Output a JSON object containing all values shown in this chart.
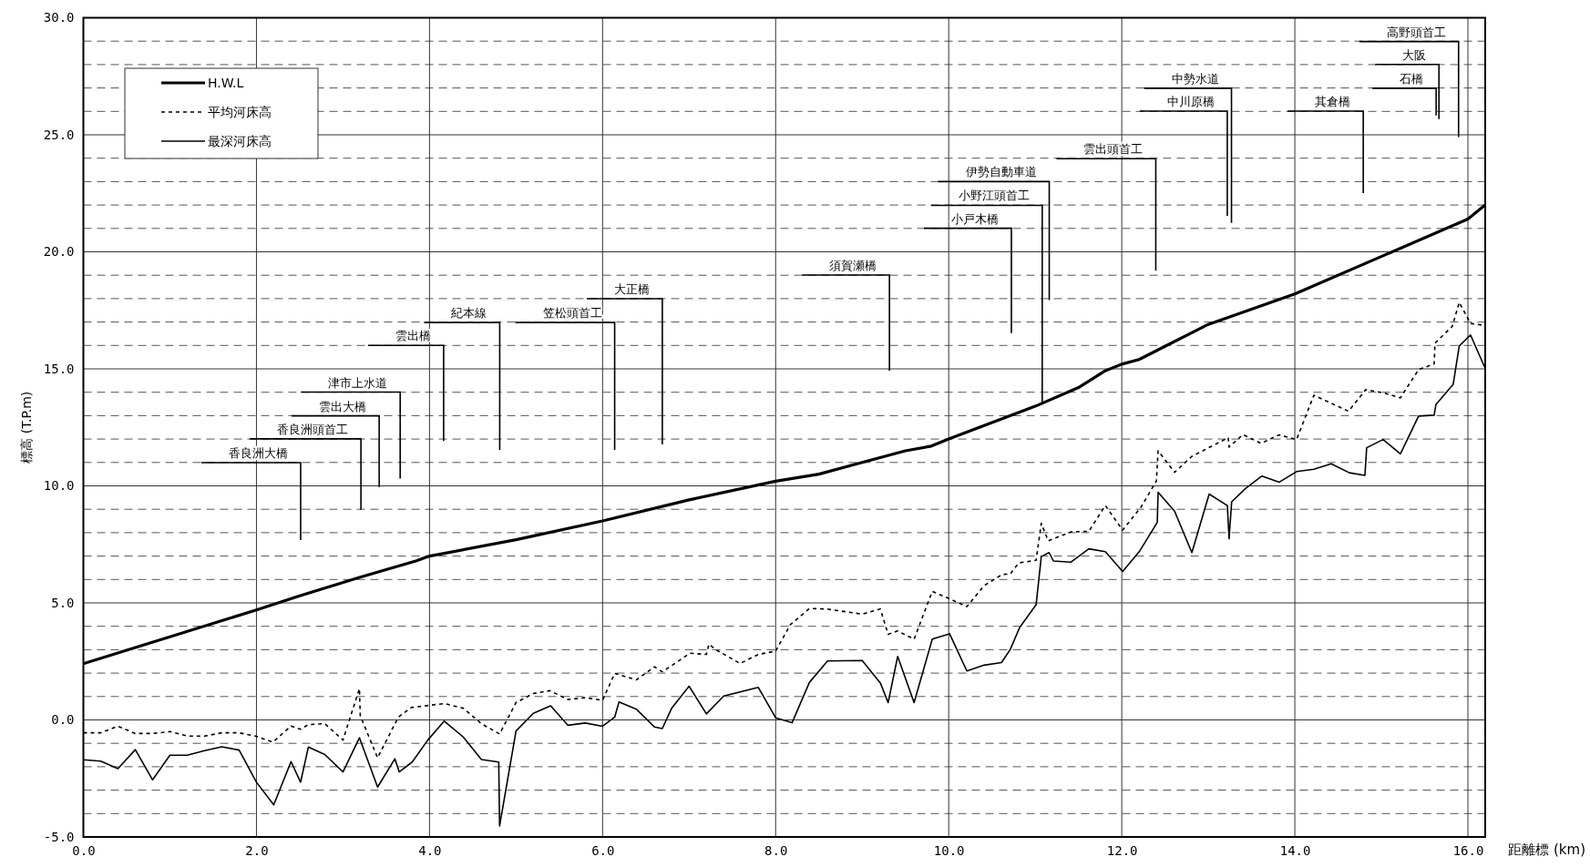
{
  "chart_data": {
    "type": "line",
    "xlabel": "距離標 (km)",
    "ylabel": "標高 (T.P.m)",
    "xlim": [
      0,
      16.2
    ],
    "ylim": [
      -5,
      30
    ],
    "xticks": [
      {
        "value": 0,
        "label": "0.0"
      },
      {
        "value": 2,
        "label": "2.0"
      },
      {
        "value": 4,
        "label": "4.0"
      },
      {
        "value": 6,
        "label": "6.0"
      },
      {
        "value": 8,
        "label": "8.0"
      },
      {
        "value": 10,
        "label": "10.0"
      },
      {
        "value": 12,
        "label": "12.0"
      },
      {
        "value": 14,
        "label": "14.0"
      },
      {
        "value": 16,
        "label": "16.0"
      }
    ],
    "yticks": [
      {
        "value": -5,
        "label": "-5.0"
      },
      {
        "value": -4,
        "label": null
      },
      {
        "value": -3,
        "label": null
      },
      {
        "value": -2,
        "label": null
      },
      {
        "value": -1,
        "label": null
      },
      {
        "value": 0,
        "label": "0.0"
      },
      {
        "value": 1,
        "label": null
      },
      {
        "value": 2,
        "label": null
      },
      {
        "value": 3,
        "label": null
      },
      {
        "value": 4,
        "label": null
      },
      {
        "value": 5,
        "label": "5.0"
      },
      {
        "value": 6,
        "label": null
      },
      {
        "value": 7,
        "label": null
      },
      {
        "value": 8,
        "label": null
      },
      {
        "value": 9,
        "label": null
      },
      {
        "value": 10,
        "label": "10.0"
      },
      {
        "value": 11,
        "label": null
      },
      {
        "value": 12,
        "label": null
      },
      {
        "value": 13,
        "label": null
      },
      {
        "value": 14,
        "label": null
      },
      {
        "value": 15,
        "label": "15.0"
      },
      {
        "value": 16,
        "label": null
      },
      {
        "value": 17,
        "label": null
      },
      {
        "value": 18,
        "label": null
      },
      {
        "value": 19,
        "label": null
      },
      {
        "value": 20,
        "label": "20.0"
      },
      {
        "value": 21,
        "label": null
      },
      {
        "value": 22,
        "label": null
      },
      {
        "value": 23,
        "label": null
      },
      {
        "value": 24,
        "label": null
      },
      {
        "value": 25,
        "label": "25.0"
      },
      {
        "value": 26,
        "label": null
      },
      {
        "value": 27,
        "label": null
      },
      {
        "value": 28,
        "label": null
      },
      {
        "value": 29,
        "label": null
      },
      {
        "value": 30,
        "label": "30.0"
      }
    ],
    "grid": true,
    "legend": "top left",
    "marker": "none",
    "series": [
      {
        "name": "H.W.L",
        "color": "#000000",
        "line_style": "solid",
        "x": [
          0,
          2,
          2.5,
          3.2,
          3.85,
          4,
          5,
          6,
          7,
          8,
          8.5,
          9,
          9.5,
          9.8,
          10,
          10.5,
          11,
          11.5,
          11.8,
          12,
          12.2,
          13,
          14,
          15,
          16,
          16.2
        ],
        "values": [
          2.4,
          4.7,
          5.3,
          6.1,
          6.8,
          7.0,
          7.7,
          8.5,
          9.4,
          10.2,
          10.5,
          11.0,
          11.5,
          11.7,
          12.0,
          12.7,
          13.4,
          14.2,
          14.9,
          15.2,
          15.4,
          16.9,
          18.2,
          19.8,
          21.4,
          22.0
        ]
      },
      {
        "name": "平均河床高",
        "color": "#000000",
        "line_style": "dotted",
        "x": [
          0,
          0.2,
          0.4,
          0.6,
          0.8,
          1.0,
          1.2,
          1.4,
          1.6,
          1.8,
          2.0,
          2.19,
          2.4,
          2.51,
          2.6,
          2.79,
          3.0,
          3.19,
          3.2,
          3.4,
          3.64,
          3.79,
          4.17,
          4.39,
          4.6,
          4.81,
          5.0,
          5.2,
          5.39,
          5.6,
          5.8,
          6.0,
          6.14,
          6.39,
          6.6,
          6.69,
          6.78,
          7.01,
          7.2,
          7.23,
          7.31,
          7.59,
          7.8,
          8.0,
          8.17,
          8.39,
          8.59,
          9.0,
          9.21,
          9.3,
          9.41,
          9.6,
          9.81,
          10.02,
          10.21,
          10.41,
          10.62,
          10.71,
          10.81,
          11.01,
          11.07,
          11.15,
          11.41,
          11.62,
          11.81,
          12.01,
          12.22,
          12.4,
          12.42,
          12.61,
          12.81,
          13.23,
          13.24,
          13.4,
          13.61,
          13.82,
          14.02,
          14.22,
          14.62,
          14.82,
          15.03,
          15.22,
          15.43,
          15.61,
          15.62,
          15.82,
          15.9,
          16.03,
          16.2
        ],
        "values": [
          -0.55,
          -0.55,
          -0.27,
          -0.58,
          -0.58,
          -0.5,
          -0.69,
          -0.69,
          -0.55,
          -0.55,
          -0.7,
          -0.95,
          -0.26,
          -0.4,
          -0.2,
          -0.16,
          -0.86,
          1.34,
          0.18,
          -1.62,
          0.12,
          0.53,
          0.7,
          0.5,
          -0.16,
          -0.6,
          0.74,
          1.13,
          1.25,
          0.87,
          0.95,
          0.84,
          1.99,
          1.71,
          2.27,
          2.06,
          2.27,
          2.85,
          2.8,
          3.24,
          3.0,
          2.41,
          2.8,
          2.94,
          4.07,
          4.76,
          4.74,
          4.52,
          4.74,
          3.66,
          3.8,
          3.45,
          5.49,
          5.16,
          4.84,
          5.74,
          6.22,
          6.23,
          6.71,
          6.82,
          8.4,
          7.65,
          8.03,
          8.06,
          9.16,
          8.11,
          9.08,
          10.21,
          11.5,
          10.58,
          11.26,
          12.06,
          11.66,
          12.19,
          11.82,
          12.18,
          11.98,
          13.87,
          13.19,
          14.11,
          13.97,
          13.76,
          14.97,
          15.21,
          16.1,
          16.82,
          17.84,
          16.94,
          16.85
        ]
      },
      {
        "name": "最深河床高",
        "color": "#000000",
        "line_style": "solid",
        "x": [
          0,
          0.2,
          0.4,
          0.6,
          0.8,
          1.0,
          1.2,
          1.4,
          1.6,
          1.8,
          2.0,
          2.2,
          2.4,
          2.51,
          2.6,
          2.79,
          3.0,
          3.19,
          3.4,
          3.6,
          3.65,
          3.8,
          3.98,
          4.17,
          4.39,
          4.6,
          4.8,
          4.81,
          5.0,
          5.2,
          5.4,
          5.6,
          5.8,
          6.0,
          6.14,
          6.19,
          6.39,
          6.6,
          6.69,
          6.8,
          7.0,
          7.2,
          7.4,
          7.8,
          8.0,
          8.19,
          8.39,
          8.6,
          9.0,
          9.21,
          9.3,
          9.41,
          9.6,
          9.81,
          10.01,
          10.21,
          10.41,
          10.61,
          10.71,
          10.82,
          11.01,
          11.07,
          11.16,
          11.21,
          11.41,
          11.62,
          11.81,
          12.01,
          12.21,
          12.41,
          12.42,
          12.61,
          12.81,
          13.01,
          13.22,
          13.24,
          13.27,
          13.43,
          13.62,
          13.82,
          14.02,
          14.22,
          14.42,
          14.63,
          14.81,
          14.83,
          15.02,
          15.22,
          15.43,
          15.61,
          15.63,
          15.83,
          15.9,
          16.03,
          16.2
        ],
        "values": [
          -1.7,
          -1.76,
          -2.08,
          -1.27,
          -2.56,
          -1.51,
          -1.51,
          -1.31,
          -1.15,
          -1.29,
          -2.66,
          -3.63,
          -1.78,
          -2.66,
          -1.16,
          -1.48,
          -2.22,
          -0.76,
          -2.87,
          -1.66,
          -2.22,
          -1.8,
          -0.86,
          -0.05,
          -0.73,
          -1.69,
          -1.8,
          -4.53,
          -0.47,
          0.28,
          0.6,
          -0.23,
          -0.13,
          -0.27,
          0.12,
          0.77,
          0.46,
          -0.3,
          -0.37,
          0.51,
          1.44,
          0.26,
          1.02,
          1.39,
          0.09,
          -0.12,
          1.6,
          2.52,
          2.54,
          1.58,
          0.74,
          2.71,
          0.74,
          3.45,
          3.68,
          2.09,
          2.34,
          2.45,
          3.0,
          3.95,
          4.92,
          6.98,
          7.15,
          6.79,
          6.74,
          7.31,
          7.19,
          6.34,
          7.23,
          8.44,
          9.73,
          8.92,
          7.15,
          9.65,
          9.16,
          7.74,
          9.32,
          9.89,
          10.42,
          10.16,
          10.61,
          10.71,
          10.94,
          10.56,
          10.45,
          11.63,
          11.98,
          11.37,
          12.98,
          13.02,
          13.47,
          14.34,
          15.98,
          16.45,
          15.02
        ]
      }
    ],
    "annotations": [
      "香良洲大橋",
      "香良洲頭首工",
      "雲出大橋",
      "津市上水道",
      "雲出橋",
      "紀本線",
      "笠松頭首工",
      "大正橋",
      "須賀瀬橋",
      "小戸木橋",
      "小野江頭首工",
      "伊勢自動車道",
      "雲出頭首工",
      "中川原橋",
      "中勢水道",
      "其倉橋",
      "石橋",
      "大阪",
      "高野頭首工"
    ]
  }
}
